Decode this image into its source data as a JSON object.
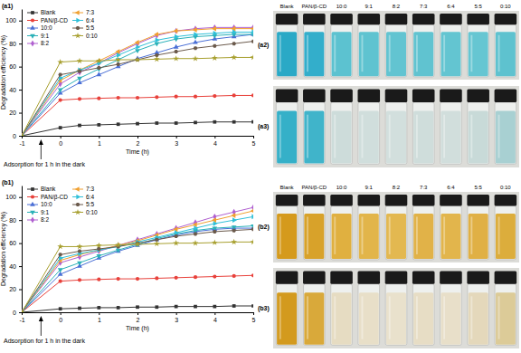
{
  "chart_data": [
    {
      "type": "line",
      "panel_label": "(a1)",
      "x_label": "Time (h)",
      "y_label": "Degradation efficiency (%)",
      "annotation": "Adsorption for 1 h in the dark",
      "x": [
        -1,
        0,
        0.5,
        1,
        1.5,
        2,
        2.5,
        3,
        3.5,
        4,
        4.5,
        5
      ],
      "xlim": [
        -1,
        5
      ],
      "xticks": [
        -1,
        0,
        1,
        2,
        3,
        4,
        5
      ],
      "ylim": [
        0,
        110
      ],
      "yticks": [
        0,
        20,
        40,
        60,
        80,
        100
      ],
      "grid": false,
      "legend": "top-left",
      "series": [
        {
          "name": "Blank",
          "color": "#333333",
          "marker": "square",
          "values": [
            0,
            7,
            9,
            9.5,
            10,
            10.5,
            11,
            11,
            11.5,
            12,
            12,
            12
          ]
        },
        {
          "name": "PAN/β-CD",
          "color": "#e8413b",
          "marker": "circle",
          "values": [
            0,
            31,
            32,
            32.5,
            33,
            33,
            33.5,
            34,
            34,
            34.5,
            35,
            35
          ]
        },
        {
          "name": "10:0",
          "color": "#4a6fd6",
          "marker": "triangle-up",
          "values": [
            0,
            37,
            46,
            53,
            60,
            67,
            72,
            77,
            81,
            84,
            86,
            88
          ]
        },
        {
          "name": "9:1",
          "color": "#2bb1b8",
          "marker": "triangle-down",
          "values": [
            0,
            40,
            50,
            58,
            66,
            74,
            80,
            84,
            86,
            87,
            88,
            88
          ]
        },
        {
          "name": "8:2",
          "color": "#b060d0",
          "marker": "diamond",
          "values": [
            0,
            45,
            55,
            63,
            72,
            80,
            87,
            91,
            93,
            94,
            94,
            94
          ]
        },
        {
          "name": "7:3",
          "color": "#f0a030",
          "marker": "triangle-left",
          "values": [
            0,
            48,
            57,
            65,
            73,
            81,
            88,
            91,
            92,
            93,
            93,
            93
          ]
        },
        {
          "name": "6:4",
          "color": "#30c0d8",
          "marker": "triangle-right",
          "values": [
            0,
            50,
            57,
            63,
            70,
            77,
            83,
            86,
            88,
            89,
            90,
            90
          ]
        },
        {
          "name": "5:5",
          "color": "#6b5a4c",
          "marker": "hexagon",
          "values": [
            0,
            53,
            56,
            59,
            62,
            66,
            70,
            73,
            76,
            78,
            80,
            82
          ]
        },
        {
          "name": "0:10",
          "color": "#a8a030",
          "marker": "star",
          "values": [
            0,
            64,
            65,
            65,
            66,
            66,
            66.5,
            67,
            67,
            67.5,
            68,
            68
          ]
        }
      ]
    },
    {
      "type": "line",
      "panel_label": "(b1)",
      "x_label": "Time (h)",
      "y_label": "Degradation efficiency (%)",
      "annotation": "Adsorption for 1 h in the dark",
      "x": [
        -1,
        0,
        0.5,
        1,
        1.5,
        2,
        2.5,
        3,
        3.5,
        4,
        4.5,
        5
      ],
      "xlim": [
        -1,
        5
      ],
      "xticks": [
        -1,
        0,
        1,
        2,
        3,
        4,
        5
      ],
      "ylim": [
        0,
        110
      ],
      "yticks": [
        0,
        20,
        40,
        60,
        80,
        100
      ],
      "grid": false,
      "legend": "top-left",
      "series": [
        {
          "name": "Blank",
          "color": "#333333",
          "marker": "square",
          "values": [
            0,
            3,
            3.5,
            4,
            4,
            4.5,
            4.5,
            5,
            5,
            5,
            5.5,
            5.5
          ]
        },
        {
          "name": "PAN/β-CD",
          "color": "#e8413b",
          "marker": "circle",
          "values": [
            0,
            27,
            28,
            28.5,
            29,
            29,
            29.5,
            30,
            30.5,
            31,
            31.5,
            32
          ]
        },
        {
          "name": "10:0",
          "color": "#4a6fd6",
          "marker": "triangle-up",
          "values": [
            0,
            33,
            40,
            47,
            53,
            58,
            63,
            67,
            70,
            72,
            73,
            73
          ]
        },
        {
          "name": "9:1",
          "color": "#2bb1b8",
          "marker": "triangle-down",
          "values": [
            0,
            37,
            43,
            49,
            54,
            59,
            64,
            68,
            71,
            73,
            74,
            75
          ]
        },
        {
          "name": "8:2",
          "color": "#b060d0",
          "marker": "diamond",
          "values": [
            0,
            43,
            48,
            53,
            58,
            63,
            68,
            73,
            78,
            83,
            87,
            91
          ]
        },
        {
          "name": "7:3",
          "color": "#f0a030",
          "marker": "triangle-left",
          "values": [
            0,
            45,
            50,
            54,
            58,
            62,
            67,
            72,
            76,
            80,
            84,
            88
          ]
        },
        {
          "name": "6:4",
          "color": "#30c0d8",
          "marker": "triangle-right",
          "values": [
            0,
            47,
            51,
            54,
            57,
            61,
            65,
            69,
            73,
            77,
            80,
            83
          ]
        },
        {
          "name": "5:5",
          "color": "#6b5a4c",
          "marker": "hexagon",
          "values": [
            0,
            50,
            53,
            55,
            57,
            60,
            63,
            66,
            68,
            70,
            71,
            72
          ]
        },
        {
          "name": "0:10",
          "color": "#a8a030",
          "marker": "star",
          "values": [
            0,
            57,
            57,
            58,
            58.5,
            59,
            59.5,
            60,
            60,
            60.5,
            61,
            61
          ]
        }
      ]
    }
  ],
  "photos": [
    {
      "panel_label": "(a2)",
      "labels": [
        "Blank",
        "PAN/β-CD",
        "10:0",
        "9:1",
        "8:2",
        "7:3",
        "6:4",
        "5:5",
        "0:10"
      ],
      "colors": [
        "#2aa9c6",
        "#33aecb",
        "#5cc2d0",
        "#5fc3d0",
        "#62c4d1",
        "#60c3d0",
        "#63c5d1",
        "#66c6d2",
        "#5ec2cf"
      ]
    },
    {
      "panel_label": "(a3)",
      "colors": [
        "#35b0c8",
        "#40b4ca",
        "#cddcda",
        "#d0dedc",
        "#d2dfdd",
        "#cfdddb",
        "#d1dedc",
        "#c8dad8",
        "#a8d0d2"
      ]
    },
    {
      "panel_label": "(b2)",
      "labels": [
        "Blank",
        "PAN/β-CD",
        "10:0",
        "9:1",
        "8:2",
        "7:3",
        "6:4",
        "5:5",
        "0:10"
      ],
      "colors": [
        "#d59a1c",
        "#d8a22a",
        "#e0b040",
        "#e2b54a",
        "#e3b850",
        "#e1b248",
        "#e2b54c",
        "#e0b045",
        "#dcad3c"
      ]
    },
    {
      "panel_label": "(b3)",
      "colors": [
        "#d39a1e",
        "#d9a93a",
        "#e6dcc2",
        "#e8dfc8",
        "#e9e1cc",
        "#e7ddc5",
        "#e8dfc9",
        "#e4d8bb",
        "#dccb98"
      ]
    }
  ]
}
